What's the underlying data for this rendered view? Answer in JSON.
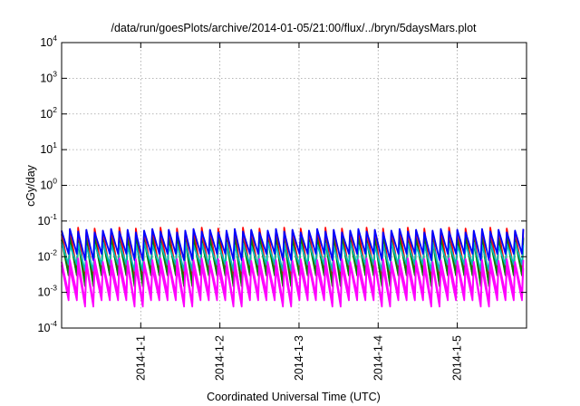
{
  "chart_data": {
    "type": "line",
    "title": "/data/run/goesPlots/archive/2014-01-05/21:00/flux/../bryn/5daysMars.plot",
    "xlabel": "Coordinated Universal Time (UTC)",
    "ylabel": "cGy/day",
    "y_scale": "log",
    "ylim": [
      0.0001,
      10000
    ],
    "y_ticks": [
      {
        "base": "10",
        "exp": "-4",
        "value": 0.0001
      },
      {
        "base": "10",
        "exp": "-3",
        "value": 0.001
      },
      {
        "base": "10",
        "exp": "-2",
        "value": 0.01
      },
      {
        "base": "10",
        "exp": "-1",
        "value": 0.1
      },
      {
        "base": "10",
        "exp": "0",
        "value": 1
      },
      {
        "base": "10",
        "exp": "1",
        "value": 10
      },
      {
        "base": "10",
        "exp": "2",
        "value": 100
      },
      {
        "base": "10",
        "exp": "3",
        "value": 1000
      },
      {
        "base": "10",
        "exp": "4",
        "value": 10000
      }
    ],
    "xlim": [
      "2013-12-31T00:00",
      "2014-01-05T21:00"
    ],
    "x_ticks": [
      {
        "label": "2014-1-1",
        "value": "2014-01-01T00:00"
      },
      {
        "label": "2014-1-2",
        "value": "2014-01-02T00:00"
      },
      {
        "label": "2014-1-3",
        "value": "2014-01-03T00:00"
      },
      {
        "label": "2014-1-4",
        "value": "2014-01-04T00:00"
      },
      {
        "label": "2014-1-5",
        "value": "2014-01-05T00:00"
      }
    ],
    "grid": true,
    "legend": "none",
    "oscillation_period_hours": 2.5,
    "series": [
      {
        "color": "#ff0000",
        "peak": 0.065,
        "trough": 0.004,
        "trough_low": 0.002
      },
      {
        "color": "#cc2244",
        "peak": 0.045,
        "trough": 0.003,
        "trough_low": 0.0015
      },
      {
        "color": "#008000",
        "peak": 0.035,
        "trough": 0.003,
        "trough_low": 0.0015
      },
      {
        "color": "#00bbbb",
        "peak": 0.025,
        "trough": 0.006,
        "trough_low": 0.004
      },
      {
        "color": "#0000ff",
        "peak": 0.06,
        "trough": 0.012,
        "trough_low": 0.008
      },
      {
        "color": "#ff00ff",
        "peak": 0.009,
        "trough": 0.0009,
        "trough_low": 0.0005
      },
      {
        "color": "#ff00ff",
        "peak": 0.006,
        "trough": 0.0006,
        "trough_low": 0.0004
      }
    ]
  }
}
